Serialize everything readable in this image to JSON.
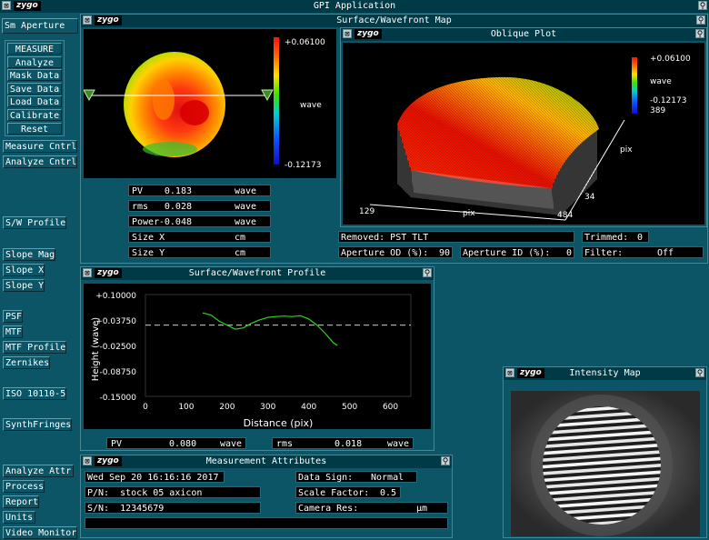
{
  "app": {
    "title": "GPI Application"
  },
  "sidebar": {
    "aperture": "Sm Aperture",
    "group": [
      "MEASURE",
      "Analyze",
      "Mask Data",
      "Save Data",
      "Load Data",
      "Calibrate",
      "Reset"
    ],
    "buttons": [
      "Measure Cntrl",
      "Analyze Cntrl",
      "S/W Profile",
      "Slope Mag",
      "Slope X",
      "Slope Y",
      "PSF",
      "MTF",
      "MTF Profile",
      "Zernikes",
      "ISO 10110-5",
      "SynthFringes",
      "Analyze Attr",
      "Process",
      "Report",
      "Units",
      "Video Monitor"
    ]
  },
  "surface_map": {
    "title": "Surface/Wavefront Map",
    "scale_max": "+0.06100",
    "scale_unit": "wave",
    "scale_min": "-0.12173",
    "stats": [
      {
        "label": "PV",
        "value": "0.183",
        "unit": "wave"
      },
      {
        "label": "rms",
        "value": "0.028",
        "unit": "wave"
      },
      {
        "label": "Power",
        "value": "-0.048",
        "unit": "wave"
      },
      {
        "label": "Size X",
        "value": "",
        "unit": "cm"
      },
      {
        "label": "Size Y",
        "value": "",
        "unit": "cm"
      }
    ]
  },
  "oblique": {
    "title": "Oblique Plot",
    "scale_max": "+0.06100",
    "scale_unit": "wave",
    "scale_min": "-0.12173",
    "y_top": "389",
    "y_label": "pix",
    "y_bottom": "34",
    "x_left": "129",
    "x_label": "pix",
    "x_right": "484",
    "removed": "Removed: PST TLT",
    "trimmed_label": "Trimmed:",
    "trimmed_value": "0",
    "aperture_od_label": "Aperture OD (%):",
    "aperture_od_value": "90",
    "aperture_id_label": "Aperture ID (%):",
    "aperture_id_value": "0",
    "filter_label": "Filter:",
    "filter_value": "Off"
  },
  "profile": {
    "title": "Surface/Wavefront Profile",
    "ylabel": "Height (wave)",
    "xlabel": "Distance (pix)",
    "yticks": [
      "+0.10000",
      "+0.03750",
      "-0.02500",
      "-0.08750",
      "-0.15000"
    ],
    "xticks": [
      "0",
      "100",
      "200",
      "300",
      "400",
      "500",
      "600"
    ],
    "pv_label": "PV",
    "pv_value": "0.080",
    "pv_unit": "wave",
    "rms_label": "rms",
    "rms_value": "0.018",
    "rms_unit": "wave",
    "line_color": "#2bd61c"
  },
  "chart_data": {
    "type": "line",
    "title": "Surface/Wavefront Profile",
    "xlabel": "Distance (pix)",
    "ylabel": "Height (wave)",
    "xlim": [
      0,
      650
    ],
    "ylim": [
      -0.15,
      0.1
    ],
    "x": [
      140,
      160,
      180,
      200,
      220,
      240,
      260,
      280,
      300,
      320,
      340,
      360,
      380,
      400,
      420,
      440,
      460,
      470
    ],
    "y": [
      0.055,
      0.05,
      0.035,
      0.025,
      0.015,
      0.018,
      0.03,
      0.038,
      0.044,
      0.046,
      0.047,
      0.046,
      0.048,
      0.04,
      0.025,
      0.005,
      -0.018,
      -0.025
    ],
    "reference_y": 0.025,
    "grid": false
  },
  "intensity": {
    "title": "Intensity Map"
  },
  "attributes": {
    "title": "Measurement Attributes",
    "date": "Wed Sep 20 16:16:16 2017",
    "pn": "P/N:  stock 05 axicon",
    "sn": "S/N:  12345679",
    "data_sign_label": "Data Sign:",
    "data_sign_value": "Normal",
    "scale_factor_label": "Scale Factor:",
    "scale_factor_value": "0.5",
    "camera_res_label": "Camera Res:",
    "camera_res_unit": "µm"
  },
  "colors": {
    "bg": "#0b5566",
    "titlebar": "#003a46",
    "plot_bg": "#000000"
  }
}
